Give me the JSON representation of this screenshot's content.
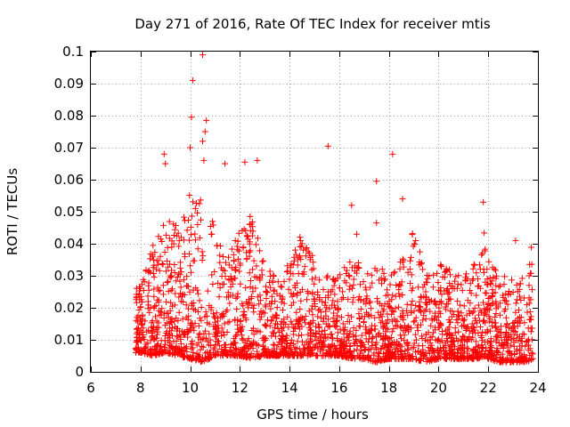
{
  "chart_data": {
    "type": "scatter",
    "title": "Day 271 of 2016, Rate Of TEC Index for receiver mtis",
    "xlabel": "GPS time / hours",
    "ylabel": "ROTI / TECUs",
    "xlim": [
      6,
      24
    ],
    "ylim": [
      0,
      0.1
    ],
    "x_ticks": [
      6,
      8,
      10,
      12,
      14,
      16,
      18,
      20,
      22,
      24
    ],
    "x_tick_labels": [
      "6",
      "8",
      "10",
      "12",
      "14",
      "16",
      "18",
      "20",
      "22",
      "24"
    ],
    "y_ticks": [
      0,
      0.01,
      0.02,
      0.03,
      0.04,
      0.05,
      0.06,
      0.07,
      0.08,
      0.09,
      0.1
    ],
    "y_tick_labels": [
      "0",
      "0.01",
      "0.02",
      "0.03",
      "0.04",
      "0.05",
      "0.06",
      "0.07",
      "0.08",
      "0.09",
      "0.1"
    ],
    "grid": true,
    "marker": "+",
    "marker_color": "#ff0000",
    "series": [
      {
        "name": "ROTI",
        "envelope": {
          "x": [
            7.8,
            8.0,
            8.5,
            9.0,
            9.5,
            10.0,
            10.5,
            11.0,
            11.5,
            12.0,
            12.5,
            13.0,
            13.5,
            14.0,
            14.5,
            15.0,
            15.5,
            16.0,
            16.5,
            17.0,
            17.5,
            18.0,
            18.5,
            19.0,
            19.5,
            20.0,
            20.5,
            21.0,
            21.5,
            21.9,
            22.0,
            22.5,
            23.0,
            23.5,
            23.8
          ],
          "low": [
            0.006,
            0.006,
            0.005,
            0.006,
            0.005,
            0.004,
            0.003,
            0.005,
            0.005,
            0.005,
            0.004,
            0.005,
            0.005,
            0.005,
            0.005,
            0.005,
            0.005,
            0.005,
            0.004,
            0.004,
            0.003,
            0.004,
            0.004,
            0.004,
            0.003,
            0.004,
            0.004,
            0.004,
            0.004,
            0.005,
            0.004,
            0.003,
            0.003,
            0.003,
            0.004
          ],
          "high": [
            0.026,
            0.028,
            0.04,
            0.05,
            0.045,
            0.06,
            0.055,
            0.045,
            0.035,
            0.045,
            0.05,
            0.035,
            0.03,
            0.035,
            0.045,
            0.035,
            0.03,
            0.03,
            0.04,
            0.032,
            0.035,
            0.03,
            0.038,
            0.045,
            0.03,
            0.035,
            0.032,
            0.03,
            0.035,
            0.045,
            0.035,
            0.03,
            0.03,
            0.03,
            0.045
          ]
        },
        "outliers": [
          {
            "x": 10.5,
            "y": 0.099
          },
          {
            "x": 10.1,
            "y": 0.091
          },
          {
            "x": 10.05,
            "y": 0.0795
          },
          {
            "x": 10.65,
            "y": 0.0785
          },
          {
            "x": 10.6,
            "y": 0.075
          },
          {
            "x": 8.95,
            "y": 0.068
          },
          {
            "x": 9.0,
            "y": 0.065
          },
          {
            "x": 10.0,
            "y": 0.07
          },
          {
            "x": 10.5,
            "y": 0.072
          },
          {
            "x": 10.55,
            "y": 0.066
          },
          {
            "x": 11.4,
            "y": 0.065
          },
          {
            "x": 12.2,
            "y": 0.0655
          },
          {
            "x": 12.7,
            "y": 0.066
          },
          {
            "x": 15.55,
            "y": 0.0705
          },
          {
            "x": 18.15,
            "y": 0.068
          },
          {
            "x": 17.5,
            "y": 0.0595
          },
          {
            "x": 16.5,
            "y": 0.052
          },
          {
            "x": 18.55,
            "y": 0.054
          },
          {
            "x": 21.8,
            "y": 0.053
          },
          {
            "x": 23.1,
            "y": 0.041
          },
          {
            "x": 17.5,
            "y": 0.0465
          },
          {
            "x": 16.7,
            "y": 0.043
          }
        ]
      }
    ]
  }
}
